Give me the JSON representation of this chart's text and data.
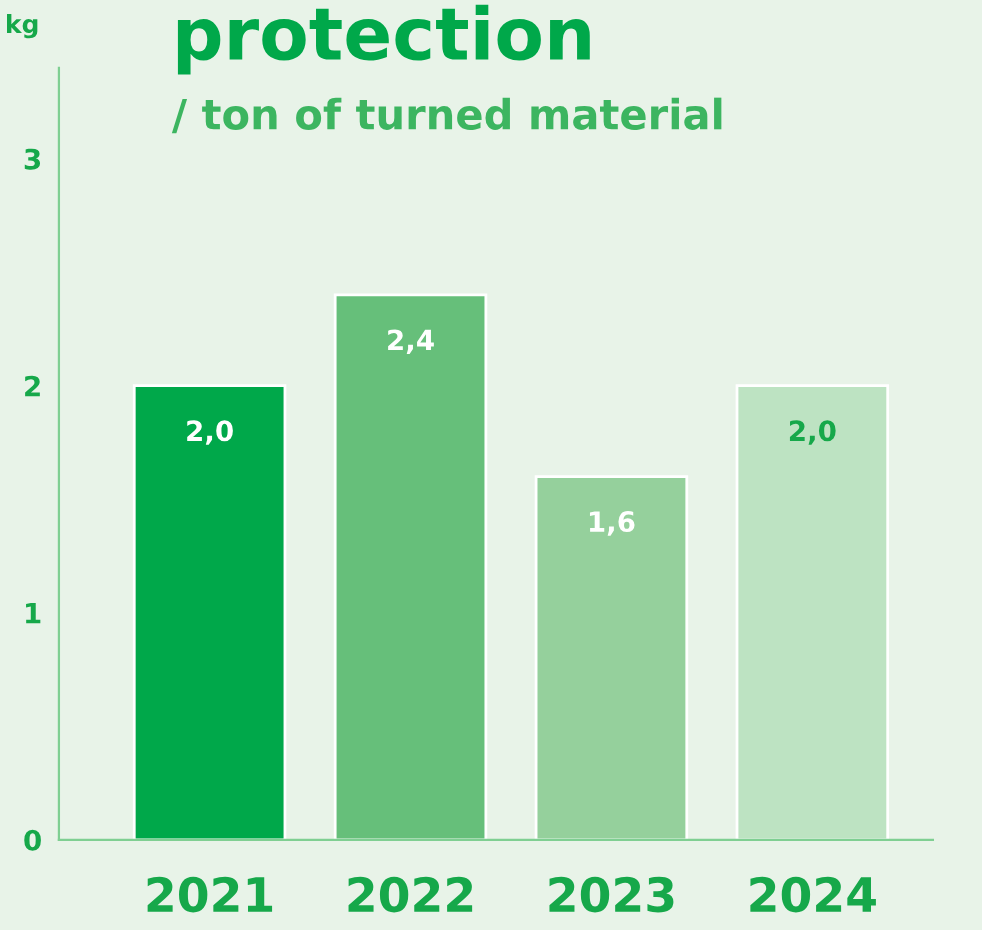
{
  "chart_data": {
    "type": "bar",
    "title": "protection",
    "subtitle": "/ ton of turned material",
    "ylabel": "kg",
    "categories": [
      "2021",
      "2022",
      "2023",
      "2024"
    ],
    "values": [
      2.0,
      2.4,
      1.6,
      2.0
    ],
    "colors": [
      "#00a84a",
      "#66bf7a",
      "#95d09c",
      "#bde3c2"
    ],
    "value_labels": [
      "2,0",
      "2,4",
      "1,6",
      "2,0"
    ],
    "ylim": [
      0,
      3.4
    ],
    "yticks": [
      0,
      1,
      2,
      3
    ],
    "grid": false,
    "legend": false
  }
}
